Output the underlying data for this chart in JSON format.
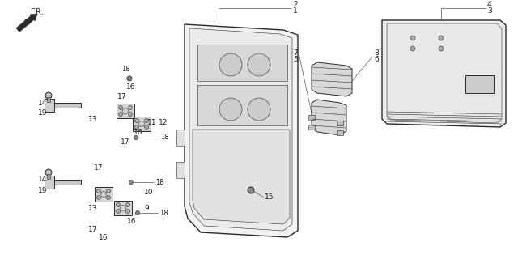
{
  "bg_color": "#ffffff",
  "line_color": "#2a2a2a",
  "fig_width": 6.4,
  "fig_height": 3.15,
  "dpi": 100,
  "lw_main": 1.0,
  "lw_med": 0.7,
  "lw_thin": 0.4,
  "fs_label": 6.5
}
